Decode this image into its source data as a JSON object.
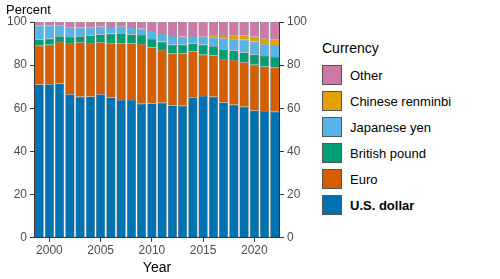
{
  "chart_data": {
    "type": "bar",
    "stacked": true,
    "y_label": "Percent",
    "x_label": "Year",
    "legend_title": "Currency",
    "legend": "right",
    "grid": false,
    "categories": [
      null,
      "2000",
      null,
      null,
      null,
      null,
      "2005",
      null,
      null,
      null,
      null,
      "2010",
      null,
      null,
      null,
      null,
      "2015",
      null,
      null,
      null,
      null,
      "2020",
      null,
      null
    ],
    "series": [
      {
        "name": "U.S. dollar",
        "color": "#0072b2",
        "values": [
          71.0,
          71.1,
          71.5,
          66.5,
          65.4,
          65.5,
          66.5,
          65.0,
          63.9,
          63.8,
          62.1,
          62.2,
          62.6,
          61.3,
          61.2,
          65.1,
          65.7,
          65.4,
          62.7,
          61.7,
          60.7,
          59.0,
          58.8,
          58.4
        ]
      },
      {
        "name": "Euro",
        "color": "#d55e00",
        "values": [
          18.0,
          18.3,
          19.2,
          23.8,
          25.2,
          24.8,
          24.1,
          25.1,
          26.1,
          26.2,
          27.7,
          26.0,
          24.4,
          24.1,
          24.2,
          21.2,
          19.1,
          19.1,
          20.2,
          20.7,
          20.6,
          21.2,
          20.6,
          20.5
        ]
      },
      {
        "name": "British pound",
        "color": "#009e73",
        "values": [
          2.9,
          2.8,
          2.7,
          2.8,
          2.8,
          3.4,
          3.6,
          4.5,
          4.8,
          4.2,
          4.2,
          3.9,
          3.8,
          4.0,
          4.0,
          3.7,
          4.7,
          4.3,
          4.5,
          4.4,
          4.6,
          4.7,
          4.8,
          4.9
        ]
      },
      {
        "name": "Japanese yen",
        "color": "#56b4e9",
        "values": [
          6.4,
          6.1,
          5.0,
          4.4,
          3.9,
          3.8,
          3.6,
          3.1,
          3.2,
          3.5,
          2.9,
          3.7,
          3.6,
          4.1,
          3.8,
          3.5,
          3.8,
          4.0,
          4.9,
          5.2,
          5.9,
          6.0,
          5.5,
          5.5
        ]
      },
      {
        "name": "Chinese renminbi",
        "color": "#e69f00",
        "values": [
          null,
          null,
          null,
          null,
          null,
          null,
          null,
          null,
          null,
          null,
          null,
          null,
          null,
          null,
          null,
          null,
          null,
          1.1,
          1.2,
          1.9,
          1.9,
          2.3,
          2.8,
          2.6
        ]
      },
      {
        "name": "Other",
        "color": "#cc79a7",
        "values": [
          1.7,
          1.7,
          1.6,
          2.5,
          2.7,
          2.5,
          2.2,
          2.3,
          2.0,
          2.3,
          3.1,
          4.2,
          5.6,
          6.5,
          6.8,
          6.5,
          6.7,
          6.1,
          6.5,
          6.1,
          6.3,
          6.8,
          7.5,
          8.1
        ]
      }
    ],
    "ylim": [
      0,
      100
    ],
    "yticks": [
      0,
      20,
      40,
      60,
      80,
      100
    ],
    "y2lim": [
      0,
      100
    ],
    "y2ticks": [
      0,
      20,
      40,
      60,
      80,
      100
    ]
  }
}
